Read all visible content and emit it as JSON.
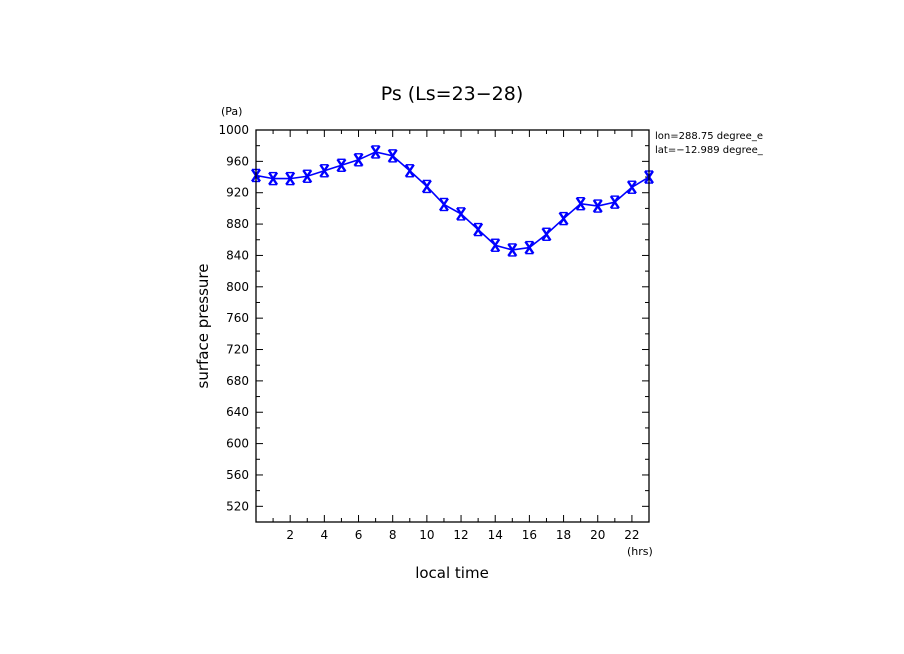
{
  "chart_data": {
    "type": "line",
    "title": "Ps (Ls=23−28)",
    "xlabel": "local time",
    "ylabel": "surface pressure",
    "x_unit": "(hrs)",
    "y_unit": "(Pa)",
    "xlim": [
      0,
      23
    ],
    "ylim": [
      500,
      1000
    ],
    "x_ticks": [
      "2",
      "4",
      "6",
      "8",
      "10",
      "12",
      "14",
      "16",
      "18",
      "20",
      "22"
    ],
    "y_ticks": [
      "520",
      "560",
      "600",
      "640",
      "680",
      "720",
      "760",
      "800",
      "840",
      "880",
      "920",
      "960",
      "1000"
    ],
    "annotations": [
      "lon=288.75 degree_e",
      "lat=−12.989 degree_"
    ],
    "grid": false,
    "series": [
      {
        "color": "#0000ff",
        "marker": "x",
        "x": [
          0,
          1,
          2,
          3,
          4,
          5,
          6,
          7,
          8,
          9,
          10,
          11,
          12,
          13,
          14,
          15,
          16,
          17,
          18,
          19,
          20,
          21,
          22,
          23
        ],
        "values": [
          942,
          938,
          938,
          941,
          948,
          955,
          962,
          972,
          967,
          948,
          928,
          905,
          893,
          873,
          853,
          847,
          850,
          867,
          887,
          906,
          903,
          908,
          927,
          940
        ]
      }
    ]
  }
}
